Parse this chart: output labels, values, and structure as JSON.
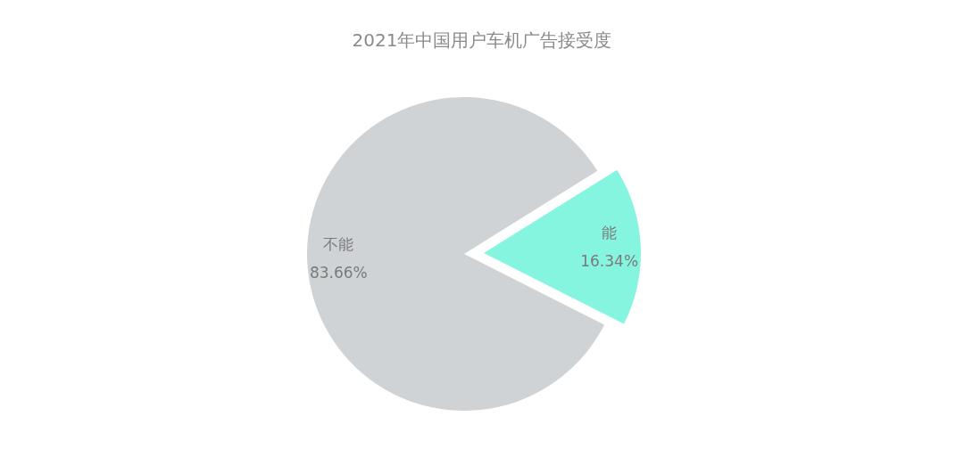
{
  "chart_data": {
    "type": "pie",
    "title": "2021年中国用户车机广告接受度",
    "categories": [
      "能",
      "不能"
    ],
    "values": [
      16.34,
      83.66
    ],
    "value_labels": [
      "16.34%",
      "83.66%"
    ],
    "colors": [
      "#86f5e0",
      "#d0d3d6"
    ],
    "legend": false
  }
}
